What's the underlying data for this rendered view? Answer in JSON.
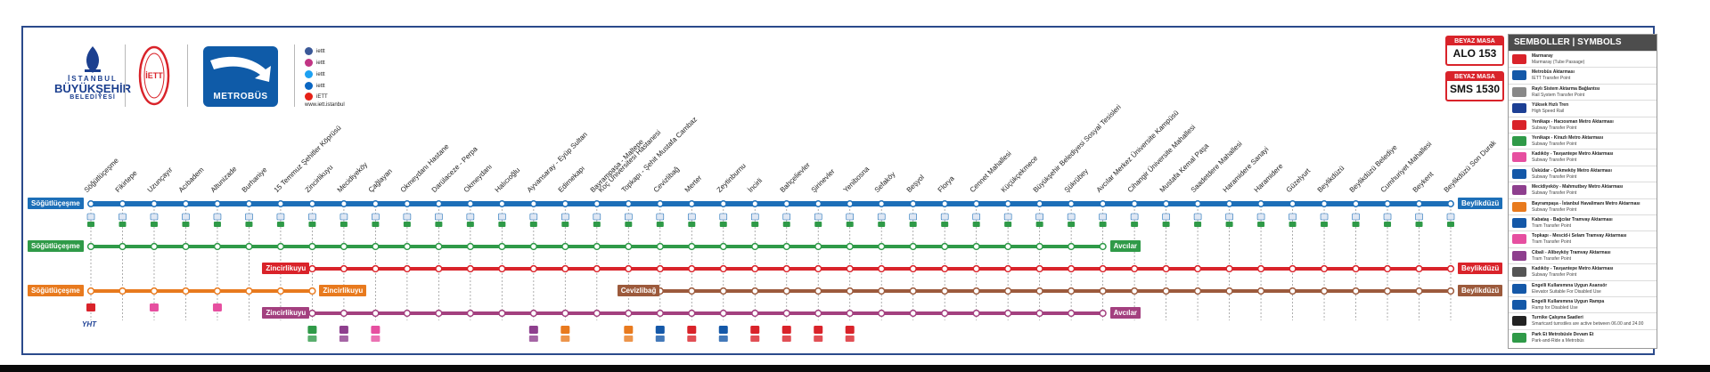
{
  "branding": {
    "ibb_line1": "İSTANBUL",
    "ibb_line2": "BÜYÜKŞEHİR",
    "ibb_line3": "BELEDİYESİ",
    "iett": "İETT",
    "metrobus": "METROBÜS",
    "social": [
      "iettt",
      "iettt",
      "iettt",
      "iettt",
      "iETT"
    ],
    "website": "www.iett.istanbul"
  },
  "beyaz_masa": [
    {
      "label": "BEYAZ MASA",
      "number": "ALO 153"
    },
    {
      "label": "BEYAZ MASA",
      "number": "SMS 1530"
    }
  ],
  "legend": {
    "title": "SEMBOLLER | SYMBOLS",
    "items": [
      {
        "name": "Marmaray",
        "en": "Marmaray (Tube Passage)",
        "color": "#d9232a"
      },
      {
        "name": "Metrobüs Aktarması",
        "en": "IETT Transfer Point",
        "color": "#1458a8"
      },
      {
        "name": "Raylı Sistem Aktarma Bağlantısı",
        "en": "Rail System Transfer Point",
        "color": "#888888"
      },
      {
        "name": "Yüksek Hızlı Tren",
        "en": "High Speed Rail",
        "color": "#1c3f94"
      },
      {
        "name": "Yenikapı - Hacıosman Metro Aktarması",
        "en": "Subway Transfer Point",
        "color": "#d9232a"
      },
      {
        "name": "Yenikapı - Kirazlı Metro Aktarması",
        "en": "Subway Transfer Point",
        "color": "#2f9a48"
      },
      {
        "name": "Kadıköy - Tavşantepe Metro Aktarması",
        "en": "Subway Transfer Point",
        "color": "#e64fa0"
      },
      {
        "name": "Üsküdar - Çekmeköy Metro Aktarması",
        "en": "Subway Transfer Point",
        "color": "#1458a8"
      },
      {
        "name": "Mecidiyeköy - Mahmutbey Metro Aktarması",
        "en": "Subway Transfer Point",
        "color": "#8e3f8e"
      },
      {
        "name": "Bayrampaşa - İstanbul Havalimanı Metro Aktarması",
        "en": "Subway Transfer Point",
        "color": "#e87a1e"
      },
      {
        "name": "Kabataş - Bağcılar Tramvay Aktarması",
        "en": "Tram Transfer Point",
        "color": "#1458a8"
      },
      {
        "name": "Topkapı - Mescid-i Selam Tramvay Aktarması",
        "en": "Tram Transfer Point",
        "color": "#e64fa0"
      },
      {
        "name": "Cibali - Alibeyköy Tramvay Aktarması",
        "en": "Tram Transfer Point",
        "color": "#8e3f8e"
      },
      {
        "name": "Kadıköy - Tavşantepe Metro Aktarması",
        "en": "Subway Transfer Point",
        "color": "#555555"
      },
      {
        "name": "Engelli Kullanımına Uygun Asansör",
        "en": "Elevator Suitable For Disabled Use",
        "color": "#1458a8"
      },
      {
        "name": "Engelli Kullanımına Uygun Rampa",
        "en": "Ramp for Disabled Use",
        "color": "#1458a8"
      },
      {
        "name": "Turnike Çalışma Saatleri",
        "en": "Smartcard turnstiles are active between 06.00 and 24.00",
        "color": "#222222"
      },
      {
        "name": "Park Et Metrobüsle Devam Et",
        "en": "Park-and-Ride a Metrobüs",
        "color": "#2f9a48"
      }
    ]
  },
  "stations": [
    "Söğütlüçeşme",
    "Fikirtepe",
    "Uzunçayır",
    "Acıbadem",
    "Altunizade",
    "Burhaniye",
    "15 Temmuz Şehitler Köprüsü",
    "Zincirlikuyu",
    "Mecidiyeköy",
    "Çağlayan",
    "Okmeydanı Hastane",
    "Darülaceze - Perpa",
    "Okmeydanı",
    "Halıcıoğlu",
    "Ayvansaray - Eyüp Sultan",
    "Edirnekapı",
    "Bayrampaşa - Maltepe",
    "Topkapı - Şehit Mustafa Cambaz",
    "Cevizlibağ",
    "Merter",
    "Zeytinburnu",
    "İncirli",
    "Bahçelievler",
    "Şirinevler",
    "Yenibosna",
    "Sefaköy",
    "Beşyol",
    "Florya",
    "Cennet Mahallesi",
    "Küçükçekmece",
    "Büyükşehir Belediyesi Sosyal Tesisleri",
    "Şükrübey",
    "Avcılar Merkez Üniversite Kampüsü",
    "Cihangir Üniversite Mahallesi",
    "Mustafa Kemal Paşa",
    "Saadetdere Mahallesi",
    "Haramidere Sanayi",
    "Haramidere",
    "Güzelyurt",
    "Beylikdüzü",
    "Beylikdüzü Belediye",
    "Cumhuriyet Mahallesi",
    "Beykent",
    "Beylikdüzü Son Durak"
  ],
  "extra_labels": [
    "Koç Üniversitesi Hastanesi"
  ],
  "routes": [
    {
      "name": "main",
      "from": "Söğütlüçeşme",
      "to": "Beylikdüzü",
      "color": "#1d6fb8"
    },
    {
      "name": "green",
      "from": "Söğütlüçeşme",
      "to": "Avcılar",
      "color": "#2f9a48"
    },
    {
      "name": "red",
      "from": "Zincirlikuyu",
      "to": "Beylikdüzü",
      "color": "#d9232a"
    },
    {
      "name": "orange",
      "from": "Söğütlüçeşme",
      "to": "Zincirlikuyu",
      "color": "#e87a1e"
    },
    {
      "name": "brown",
      "from": "Cevizlibağ",
      "to": "Beylikdüzü",
      "color": "#9c5a3c"
    },
    {
      "name": "magenta",
      "from": "Zincirlikuyu",
      "to": "Avcılar",
      "color": "#a3407f"
    }
  ],
  "yht_label": "YHT"
}
